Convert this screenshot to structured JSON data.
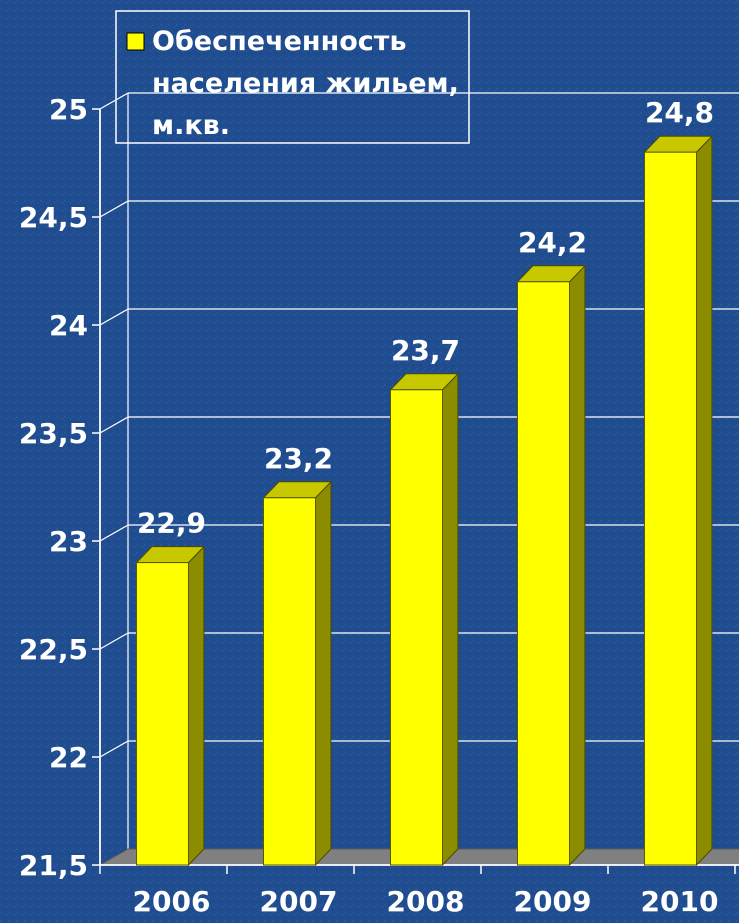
{
  "chart_data": {
    "type": "bar",
    "categories": [
      "2006",
      "2007",
      "2008",
      "2009",
      "2010"
    ],
    "series": [
      {
        "name": "Обеспеченность населения жильем, м.кв.",
        "values": [
          22.9,
          23.2,
          23.7,
          24.2,
          24.8
        ],
        "labels": [
          "22,9",
          "23,2",
          "23,7",
          "24,2",
          "24,8"
        ],
        "color": "#ffff00"
      }
    ],
    "ylim": [
      21.5,
      25
    ],
    "yticks": [
      21.5,
      22,
      22.5,
      23,
      23.5,
      24,
      24.5,
      25
    ],
    "ytick_labels": [
      "21,5",
      "22",
      "22,5",
      "23",
      "23,5",
      "24",
      "24,5",
      "25"
    ],
    "grid": true,
    "legend_position": "top-left",
    "legend_lines": [
      "Обеспеченность",
      "населения жильем,",
      "м.кв."
    ],
    "colors": {
      "background": "#1f4b8c",
      "bar_front": "#ffff00",
      "bar_side": "#8c8c00",
      "bar_top": "#c8c800",
      "floor": "#808080",
      "text": "#ffffff",
      "grid": "#ffffff"
    }
  }
}
